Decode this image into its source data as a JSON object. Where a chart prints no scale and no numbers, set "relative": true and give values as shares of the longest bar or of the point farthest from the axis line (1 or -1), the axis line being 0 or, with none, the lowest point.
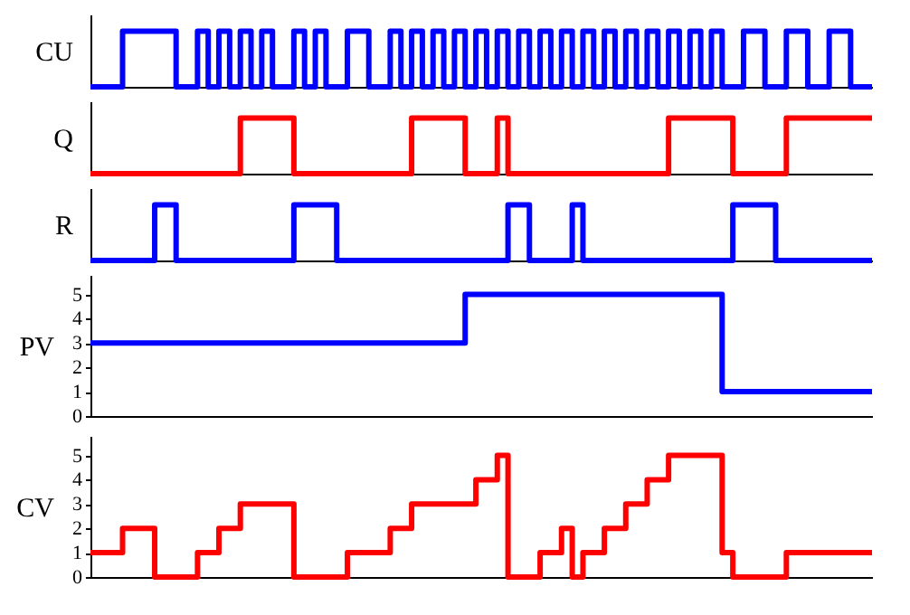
{
  "chart_data": [
    {
      "type": "step",
      "ylabel": "CU",
      "relative": true,
      "tick_labels": false,
      "color": "#0000ff",
      "categories": [
        null,
        null,
        null,
        null,
        null,
        null,
        null,
        null,
        null,
        null,
        null,
        null,
        null,
        null,
        null,
        null,
        null,
        null,
        null,
        null,
        null,
        null,
        null,
        null,
        null,
        null,
        null,
        null,
        null,
        null,
        null,
        null,
        null,
        null,
        null,
        null,
        null,
        null,
        null,
        null,
        null,
        null,
        null,
        null,
        null,
        null,
        null,
        null,
        null,
        null,
        null,
        null,
        null,
        null,
        null,
        null,
        null,
        null,
        null,
        null,
        null,
        null,
        null,
        null,
        null,
        null,
        null,
        null,
        null,
        null,
        null,
        null,
        null,
        null
      ],
      "values": [
        0,
        0,
        0,
        1,
        1,
        1,
        1,
        1,
        0,
        0,
        1,
        0,
        1,
        0,
        1,
        0,
        1,
        0,
        0,
        1,
        0,
        1,
        0,
        0,
        1,
        1,
        0,
        0,
        1,
        0,
        1,
        0,
        1,
        0,
        1,
        0,
        1,
        0,
        1,
        0,
        1,
        0,
        1,
        0,
        1,
        0,
        1,
        0,
        1,
        0,
        1,
        0,
        1,
        0,
        1,
        0,
        1,
        0,
        1,
        0,
        0,
        1,
        1,
        0,
        0,
        1,
        1,
        0,
        0,
        1,
        1,
        0,
        0,
        0
      ]
    },
    {
      "type": "step",
      "ylabel": "Q",
      "relative": true,
      "tick_labels": false,
      "color": "#ff0000",
      "categories": [
        null,
        null,
        null,
        null,
        null,
        null,
        null,
        null,
        null,
        null,
        null,
        null,
        null,
        null,
        null,
        null,
        null,
        null,
        null,
        null,
        null,
        null,
        null,
        null,
        null,
        null,
        null,
        null,
        null,
        null,
        null,
        null,
        null,
        null,
        null,
        null,
        null,
        null,
        null,
        null,
        null,
        null,
        null,
        null,
        null,
        null,
        null,
        null,
        null,
        null,
        null,
        null,
        null,
        null,
        null,
        null,
        null,
        null,
        null,
        null,
        null,
        null,
        null,
        null,
        null,
        null,
        null,
        null,
        null,
        null,
        null,
        null,
        null,
        null
      ],
      "values": [
        0,
        0,
        0,
        0,
        0,
        0,
        0,
        0,
        0,
        0,
        0,
        0,
        0,
        0,
        1,
        1,
        1,
        1,
        1,
        0,
        0,
        0,
        0,
        0,
        0,
        0,
        0,
        0,
        0,
        0,
        1,
        1,
        1,
        1,
        1,
        0,
        0,
        0,
        1,
        0,
        0,
        0,
        0,
        0,
        0,
        0,
        0,
        0,
        0,
        0,
        0,
        0,
        0,
        0,
        1,
        1,
        1,
        1,
        1,
        1,
        0,
        0,
        0,
        0,
        0,
        1,
        1,
        1,
        1,
        1,
        1,
        1,
        1,
        1
      ]
    },
    {
      "type": "step",
      "ylabel": "R",
      "relative": true,
      "tick_labels": false,
      "color": "#0000ff",
      "categories": [
        null,
        null,
        null,
        null,
        null,
        null,
        null,
        null,
        null,
        null,
        null,
        null,
        null,
        null,
        null,
        null,
        null,
        null,
        null,
        null,
        null,
        null,
        null,
        null,
        null,
        null,
        null,
        null,
        null,
        null,
        null,
        null,
        null,
        null,
        null,
        null,
        null,
        null,
        null,
        null,
        null,
        null,
        null,
        null,
        null,
        null,
        null,
        null,
        null,
        null,
        null,
        null,
        null,
        null,
        null,
        null,
        null,
        null,
        null,
        null,
        null,
        null,
        null,
        null,
        null,
        null,
        null,
        null,
        null,
        null,
        null,
        null,
        null,
        null
      ],
      "values": [
        0,
        0,
        0,
        0,
        0,
        0,
        1,
        1,
        0,
        0,
        0,
        0,
        0,
        0,
        0,
        0,
        0,
        0,
        0,
        1,
        1,
        1,
        1,
        0,
        0,
        0,
        0,
        0,
        0,
        0,
        0,
        0,
        0,
        0,
        0,
        0,
        0,
        0,
        0,
        1,
        1,
        0,
        0,
        0,
        0,
        1,
        0,
        0,
        0,
        0,
        0,
        0,
        0,
        0,
        0,
        0,
        0,
        0,
        0,
        0,
        1,
        1,
        1,
        1,
        0,
        0,
        0,
        0,
        0,
        0,
        0,
        0,
        0,
        0
      ]
    },
    {
      "type": "step",
      "ylabel": "PV",
      "ylim": [
        0,
        5.8
      ],
      "yticks": [
        0,
        1,
        2,
        3,
        4,
        5
      ],
      "tick_labels": "y",
      "color": "#0000ff",
      "categories": [
        null,
        null,
        null,
        null,
        null,
        null,
        null,
        null,
        null,
        null,
        null,
        null,
        null,
        null,
        null,
        null,
        null,
        null,
        null,
        null,
        null,
        null,
        null,
        null,
        null,
        null,
        null,
        null,
        null,
        null,
        null,
        null,
        null,
        null,
        null,
        null,
        null,
        null,
        null,
        null,
        null,
        null,
        null,
        null,
        null,
        null,
        null,
        null,
        null,
        null,
        null,
        null,
        null,
        null,
        null,
        null,
        null,
        null,
        null,
        null,
        null,
        null,
        null,
        null,
        null,
        null,
        null,
        null,
        null,
        null,
        null,
        null,
        null,
        null
      ],
      "values": [
        3,
        3,
        3,
        3,
        3,
        3,
        3,
        3,
        3,
        3,
        3,
        3,
        3,
        3,
        3,
        3,
        3,
        3,
        3,
        3,
        3,
        3,
        3,
        3,
        3,
        3,
        3,
        3,
        3,
        3,
        3,
        3,
        3,
        3,
        3,
        5,
        5,
        5,
        5,
        5,
        5,
        5,
        5,
        5,
        5,
        5,
        5,
        5,
        5,
        5,
        5,
        5,
        5,
        5,
        5,
        5,
        5,
        5,
        5,
        1,
        1,
        1,
        1,
        1,
        1,
        1,
        1,
        1,
        1,
        1,
        1,
        1,
        1,
        1
      ]
    },
    {
      "type": "step",
      "ylabel": "CV",
      "ylim": [
        0,
        5.8
      ],
      "yticks": [
        0,
        1,
        2,
        3,
        4,
        5
      ],
      "tick_labels": "y",
      "color": "#ff0000",
      "categories": [
        null,
        null,
        null,
        null,
        null,
        null,
        null,
        null,
        null,
        null,
        null,
        null,
        null,
        null,
        null,
        null,
        null,
        null,
        null,
        null,
        null,
        null,
        null,
        null,
        null,
        null,
        null,
        null,
        null,
        null,
        null,
        null,
        null,
        null,
        null,
        null,
        null,
        null,
        null,
        null,
        null,
        null,
        null,
        null,
        null,
        null,
        null,
        null,
        null,
        null,
        null,
        null,
        null,
        null,
        null,
        null,
        null,
        null,
        null,
        null,
        null,
        null,
        null,
        null,
        null,
        null,
        null,
        null,
        null,
        null,
        null,
        null,
        null,
        null
      ],
      "values": [
        1,
        1,
        1,
        2,
        2,
        2,
        0,
        0,
        0,
        0,
        1,
        1,
        2,
        2,
        3,
        3,
        3,
        3,
        3,
        0,
        0,
        0,
        0,
        0,
        1,
        1,
        1,
        1,
        2,
        2,
        3,
        3,
        3,
        3,
        3,
        3,
        4,
        4,
        5,
        0,
        0,
        0,
        1,
        1,
        2,
        0,
        1,
        1,
        2,
        2,
        3,
        3,
        4,
        4,
        5,
        5,
        5,
        5,
        5,
        1,
        0,
        0,
        0,
        0,
        0,
        1,
        1,
        1,
        1,
        1,
        1,
        1,
        1,
        1
      ]
    }
  ]
}
